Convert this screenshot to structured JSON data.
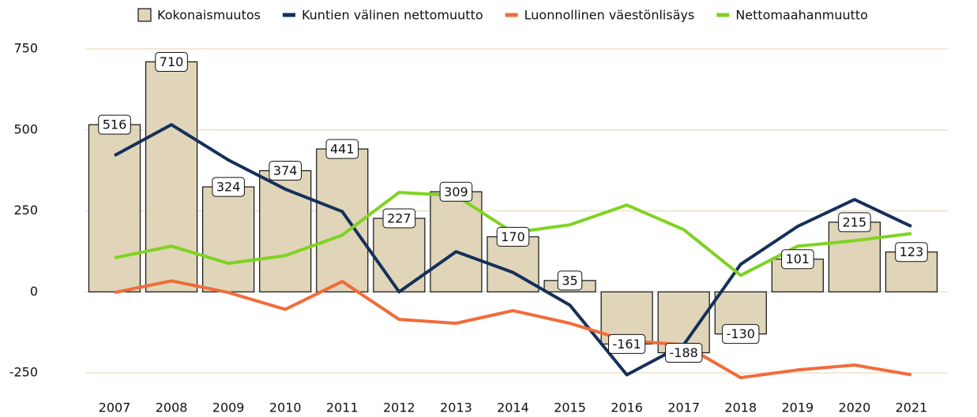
{
  "chart_data": {
    "type": "bar_line",
    "categories": [
      "2007",
      "2008",
      "2009",
      "2010",
      "2011",
      "2012",
      "2013",
      "2014",
      "2015",
      "2016",
      "2017",
      "2018",
      "2019",
      "2020",
      "2021"
    ],
    "series": [
      {
        "name": "Kokonaismuutos",
        "type": "bar",
        "color": "#e0d5b8",
        "values": [
          516,
          710,
          324,
          374,
          441,
          227,
          309,
          170,
          35,
          -161,
          -188,
          -130,
          101,
          215,
          123
        ]
      },
      {
        "name": "Kuntien välinen nettomuutto",
        "type": "line",
        "color": "#15305a",
        "values": [
          421,
          516,
          407,
          317,
          248,
          0,
          124,
          60,
          -41,
          -256,
          -163,
          85,
          202,
          285,
          202
        ]
      },
      {
        "name": "Luonnollinen väestönlisäys",
        "type": "line",
        "color": "#f26b3a",
        "values": [
          -2,
          34,
          -2,
          -54,
          32,
          -85,
          -97,
          -58,
          -97,
          -151,
          -163,
          -265,
          -241,
          -226,
          -256
        ]
      },
      {
        "name": "Nettomaahanmuutto",
        "type": "line",
        "color": "#7ed321",
        "values": [
          105,
          141,
          88,
          112,
          175,
          307,
          297,
          183,
          207,
          268,
          192,
          51,
          141,
          158,
          180
        ]
      }
    ],
    "ylim": [
      -250,
      750
    ],
    "yticks": [
      -250,
      0,
      250,
      500,
      750
    ],
    "grid": true
  }
}
